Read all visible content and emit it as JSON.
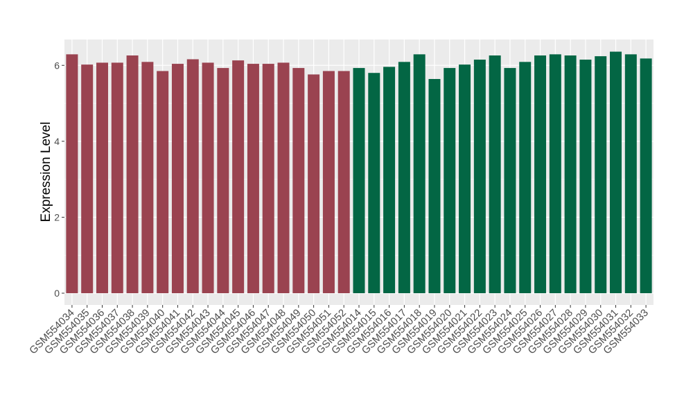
{
  "chart_data": {
    "type": "bar",
    "y_label": "Expression Level",
    "categories": [
      "GSM554034",
      "GSM554035",
      "GSM554036",
      "GSM554037",
      "GSM554038",
      "GSM554039",
      "GSM554040",
      "GSM554041",
      "GSM554042",
      "GSM554043",
      "GSM554044",
      "GSM554045",
      "GSM554046",
      "GSM554047",
      "GSM554048",
      "GSM554049",
      "GSM554050",
      "GSM554051",
      "GSM554052",
      "GSM554014",
      "GSM554015",
      "GSM554016",
      "GSM554017",
      "GSM554018",
      "GSM554019",
      "GSM554020",
      "GSM554021",
      "GSM554022",
      "GSM554023",
      "GSM554024",
      "GSM554025",
      "GSM554026",
      "GSM554027",
      "GSM554028",
      "GSM554029",
      "GSM554030",
      "GSM554031",
      "GSM554032",
      "GSM554033"
    ],
    "values": [
      6.29,
      6.02,
      6.07,
      6.07,
      6.26,
      6.09,
      5.85,
      6.04,
      6.16,
      6.07,
      5.93,
      6.13,
      6.04,
      6.04,
      6.07,
      5.93,
      5.76,
      5.85,
      5.85,
      5.93,
      5.8,
      5.96,
      6.09,
      6.29,
      5.64,
      5.93,
      6.02,
      6.15,
      6.26,
      5.93,
      6.09,
      6.26,
      6.29,
      6.26,
      6.15,
      6.24,
      6.36,
      6.29,
      6.18
    ],
    "colors": [
      "#9a4350",
      "#9a4350",
      "#9a4350",
      "#9a4350",
      "#9a4350",
      "#9a4350",
      "#9a4350",
      "#9a4350",
      "#9a4350",
      "#9a4350",
      "#9a4350",
      "#9a4350",
      "#9a4350",
      "#9a4350",
      "#9a4350",
      "#9a4350",
      "#9a4350",
      "#9a4350",
      "#9a4350",
      "#036644",
      "#036644",
      "#036644",
      "#036644",
      "#036644",
      "#036644",
      "#036644",
      "#036644",
      "#036644",
      "#036644",
      "#036644",
      "#036644",
      "#036644",
      "#036644",
      "#036644",
      "#036644",
      "#036644",
      "#036644",
      "#036644",
      "#036644"
    ],
    "ylim": [
      -0.31,
      6.68
    ],
    "yticks": [
      0,
      2,
      4,
      6
    ],
    "grid": true
  }
}
